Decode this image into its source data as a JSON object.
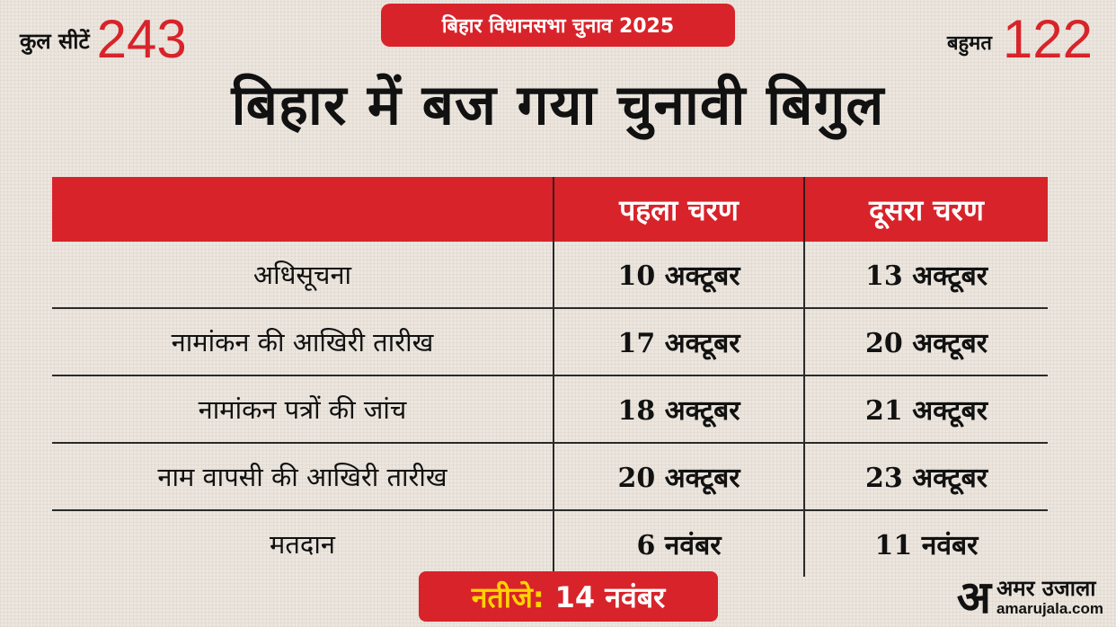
{
  "header": {
    "total_seats_label": "कुल सीटें",
    "total_seats_value": "243",
    "majority_label": "बहुमत",
    "majority_value": "122",
    "badge": "बिहार विधानसभा चुनाव 2025",
    "headline": "बिहार में बज गया चुनावी बिगुल"
  },
  "table": {
    "columns": [
      "",
      "पहला चरण",
      "दूसरा चरण"
    ],
    "rows": [
      {
        "label": "अधिसूचना",
        "phase1": "10 अक्टूबर",
        "phase2": "13 अक्टूबर"
      },
      {
        "label": "नामांकन की आखिरी तारीख",
        "phase1": "17 अक्टूबर",
        "phase2": "20 अक्टूबर"
      },
      {
        "label": "नामांकन पत्रों की जांच",
        "phase1": "18 अक्टूबर",
        "phase2": "21 अक्टूबर"
      },
      {
        "label": "नाम वापसी की आखिरी तारीख",
        "phase1": "20 अक्टूबर",
        "phase2": "23 अक्टूबर"
      },
      {
        "label": "मतदान",
        "phase1": "6 नवंबर",
        "phase2": "11 नवंबर"
      }
    ]
  },
  "result": {
    "label": "नतीजे:",
    "value": "14 नवंबर"
  },
  "logo": {
    "mark": "अ",
    "brand": "अमर उजाला",
    "site": "amarujala.com"
  },
  "colors": {
    "accent": "#d8232a",
    "result_label": "#ffd400",
    "background": "#ece6de"
  }
}
